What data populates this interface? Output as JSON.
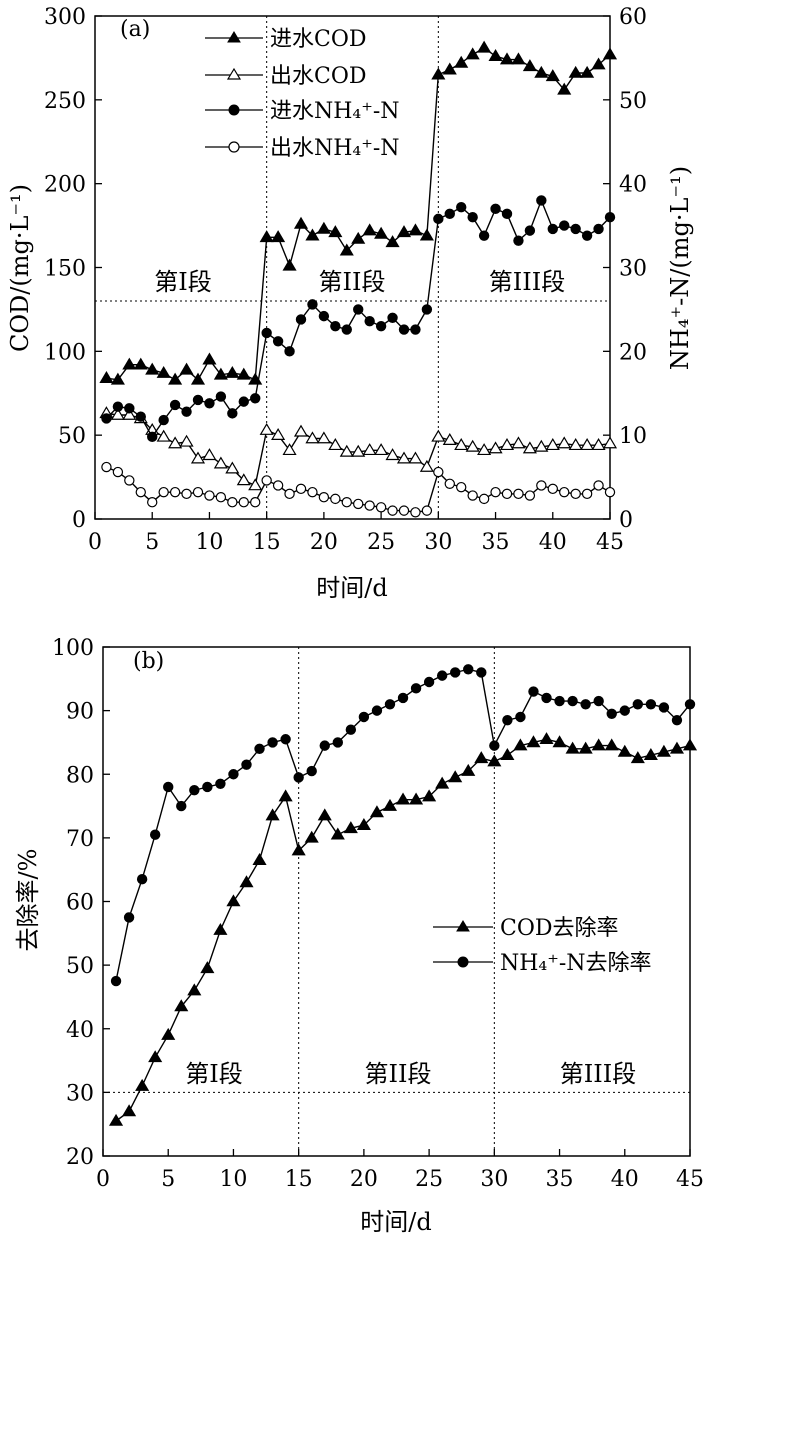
{
  "chart_data": [
    {
      "panel_label": "(a)",
      "type": "line",
      "xlabel": "时间/d",
      "ylabel_left": "COD/(mg·L⁻¹)",
      "ylabel_right": "NH₄⁺-N/(mg·L⁻¹)",
      "xlim": [
        0,
        45
      ],
      "ylim_left": [
        0,
        300
      ],
      "ylim_right": [
        0,
        60
      ],
      "xticks": [
        "0",
        "5",
        "10",
        "15",
        "20",
        "25",
        "30",
        "35",
        "40",
        "45"
      ],
      "yticks_left": [
        "0",
        "50",
        "100",
        "150",
        "200",
        "250",
        "300"
      ],
      "yticks_right": [
        "0",
        "10",
        "20",
        "30",
        "40",
        "50",
        "60"
      ],
      "stage_labels": [
        "第I段",
        "第II段",
        "第III段"
      ],
      "stage_boundaries": [
        15,
        30
      ],
      "reference_line_left_axis": 130,
      "legend_position": "top-center",
      "series": [
        {
          "name": "进水COD",
          "axis": "left",
          "marker": "filled-triangle",
          "x": [
            1,
            2,
            3,
            4,
            5,
            6,
            7,
            8,
            9,
            10,
            11,
            12,
            13,
            14,
            15,
            16,
            17,
            18,
            19,
            20,
            21,
            22,
            23,
            24,
            25,
            26,
            27,
            28,
            29,
            30,
            31,
            32,
            33,
            34,
            35,
            36,
            37,
            38,
            39,
            40,
            41,
            42,
            43,
            44,
            45
          ],
          "y": [
            84,
            83,
            92,
            92,
            89,
            87,
            83,
            89,
            83,
            95,
            86,
            87,
            86,
            83,
            168,
            168,
            151,
            176,
            169,
            173,
            171,
            160,
            167,
            172,
            170,
            165,
            171,
            172,
            169,
            265,
            268,
            272,
            277,
            281,
            276,
            274,
            274,
            270,
            266,
            264,
            256,
            266,
            266,
            271,
            277
          ]
        },
        {
          "name": "出水COD",
          "axis": "left",
          "marker": "open-triangle",
          "x": [
            1,
            2,
            3,
            4,
            5,
            6,
            7,
            8,
            9,
            10,
            11,
            12,
            13,
            14,
            15,
            16,
            17,
            18,
            19,
            20,
            21,
            22,
            23,
            24,
            25,
            26,
            27,
            28,
            29,
            30,
            31,
            32,
            33,
            34,
            35,
            36,
            37,
            38,
            39,
            40,
            41,
            42,
            43,
            44,
            45
          ],
          "y": [
            63,
            62,
            62,
            60,
            53,
            49,
            45,
            46,
            36,
            38,
            33,
            30,
            23,
            20,
            53,
            50,
            41,
            52,
            48,
            48,
            44,
            40,
            40,
            41,
            41,
            38,
            36,
            36,
            31,
            49,
            47,
            44,
            43,
            41,
            42,
            44,
            45,
            42,
            43,
            44,
            45,
            44,
            44,
            44,
            45
          ]
        },
        {
          "name": "进水NH₄⁺-N",
          "axis": "right",
          "marker": "filled-circle",
          "x": [
            1,
            2,
            3,
            4,
            5,
            6,
            7,
            8,
            9,
            10,
            11,
            12,
            13,
            14,
            15,
            16,
            17,
            18,
            19,
            20,
            21,
            22,
            23,
            24,
            25,
            26,
            27,
            28,
            29,
            30,
            31,
            32,
            33,
            34,
            35,
            36,
            37,
            38,
            39,
            40,
            41,
            42,
            43,
            44,
            45
          ],
          "y": [
            12,
            13.4,
            13.2,
            12.2,
            9.8,
            11.8,
            13.6,
            12.8,
            14.2,
            13.8,
            14.6,
            12.6,
            14,
            14.4,
            22.2,
            21.2,
            20,
            23.8,
            25.6,
            24.2,
            23,
            22.6,
            25,
            23.6,
            23,
            24,
            22.6,
            22.6,
            25,
            35.8,
            36.4,
            37.2,
            36,
            33.8,
            37,
            36.4,
            33.2,
            34.4,
            38,
            34.6,
            35,
            34.6,
            33.8,
            34.6,
            36
          ]
        },
        {
          "name": "出水NH₄⁺-N",
          "axis": "right",
          "marker": "open-circle",
          "x": [
            1,
            2,
            3,
            4,
            5,
            6,
            7,
            8,
            9,
            10,
            11,
            12,
            13,
            14,
            15,
            16,
            17,
            18,
            19,
            20,
            21,
            22,
            23,
            24,
            25,
            26,
            27,
            28,
            29,
            30,
            31,
            32,
            33,
            34,
            35,
            36,
            37,
            38,
            39,
            40,
            41,
            42,
            43,
            44,
            45
          ],
          "y": [
            6.2,
            5.6,
            4.6,
            3.2,
            2,
            3.2,
            3.2,
            3,
            3.2,
            2.8,
            2.6,
            2,
            2,
            2,
            4.6,
            4,
            3,
            3.6,
            3.2,
            2.6,
            2.4,
            2,
            1.8,
            1.6,
            1.4,
            1,
            1,
            0.8,
            1,
            5.6,
            4.2,
            3.8,
            2.8,
            2.4,
            3.2,
            3,
            3,
            2.8,
            4,
            3.6,
            3.2,
            3,
            3,
            4,
            3.2
          ]
        }
      ]
    },
    {
      "panel_label": "(b)",
      "type": "line",
      "xlabel": "时间/d",
      "ylabel": "去除率/%",
      "xlim": [
        0,
        45
      ],
      "ylim": [
        20,
        100
      ],
      "xticks": [
        "0",
        "5",
        "10",
        "15",
        "20",
        "25",
        "30",
        "35",
        "40",
        "45"
      ],
      "yticks": [
        "20",
        "30",
        "40",
        "50",
        "60",
        "70",
        "80",
        "90",
        "100"
      ],
      "stage_labels": [
        "第I段",
        "第II段",
        "第III段"
      ],
      "stage_boundaries": [
        15,
        30
      ],
      "reference_line": 30,
      "legend_position": "center-right",
      "series": [
        {
          "name": "COD去除率",
          "marker": "filled-triangle",
          "x": [
            1,
            2,
            3,
            4,
            5,
            6,
            7,
            8,
            9,
            10,
            11,
            12,
            13,
            14,
            15,
            16,
            17,
            18,
            19,
            20,
            21,
            22,
            23,
            24,
            25,
            26,
            27,
            28,
            29,
            30,
            31,
            32,
            33,
            34,
            35,
            36,
            37,
            38,
            39,
            40,
            41,
            42,
            43,
            44,
            45
          ],
          "y": [
            25.5,
            27,
            31,
            35.5,
            39,
            43.5,
            46,
            49.5,
            55.5,
            60,
            63,
            66.5,
            73.5,
            76.5,
            68,
            70,
            73.5,
            70.5,
            71.5,
            72,
            74,
            75,
            76,
            76,
            76.5,
            78.5,
            79.5,
            80.5,
            82.5,
            82,
            83,
            84.5,
            85,
            85.5,
            85,
            84,
            84,
            84.5,
            84.5,
            83.5,
            82.5,
            83,
            83.5,
            84,
            84.5
          ]
        },
        {
          "name": "NH₄⁺-N去除率",
          "marker": "filled-circle",
          "x": [
            1,
            2,
            3,
            4,
            5,
            6,
            7,
            8,
            9,
            10,
            11,
            12,
            13,
            14,
            15,
            16,
            17,
            18,
            19,
            20,
            21,
            22,
            23,
            24,
            25,
            26,
            27,
            28,
            29,
            30,
            31,
            32,
            33,
            34,
            35,
            36,
            37,
            38,
            39,
            40,
            41,
            42,
            43,
            44,
            45
          ],
          "y": [
            47.5,
            57.5,
            63.5,
            70.5,
            78,
            75,
            77.5,
            78,
            78.5,
            80,
            81.5,
            84,
            85,
            85.5,
            79.5,
            80.5,
            84.5,
            85,
            87,
            89,
            90,
            91,
            92,
            93.5,
            94.5,
            95.5,
            96,
            96.5,
            96,
            84.5,
            88.5,
            89,
            93,
            92,
            91.5,
            91.5,
            91,
            91.5,
            89.5,
            90,
            91,
            91,
            90.5,
            88.5,
            91
          ]
        }
      ]
    }
  ]
}
